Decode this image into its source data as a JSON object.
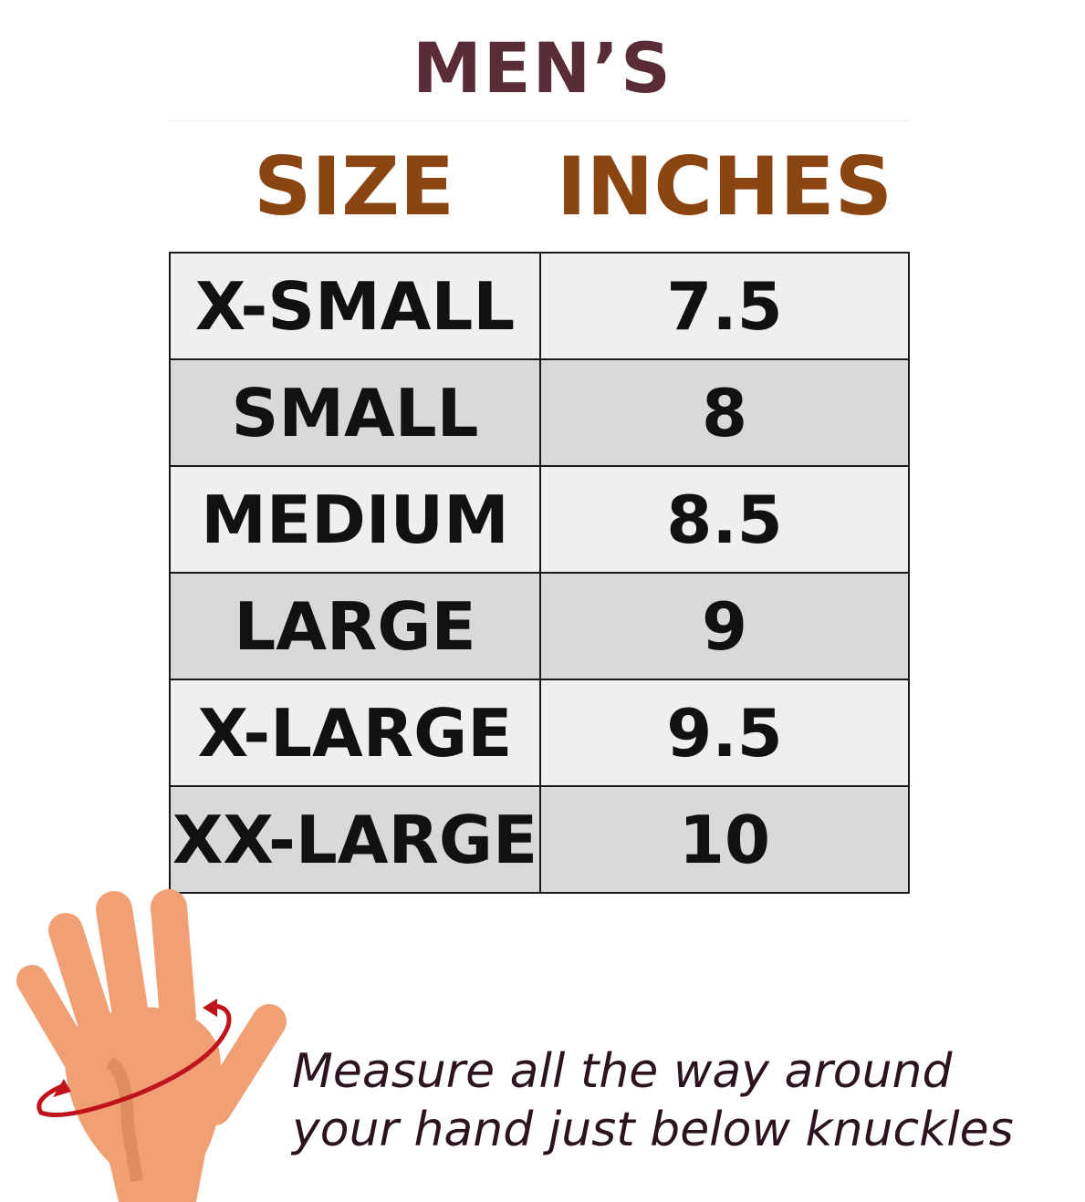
{
  "title": "MEN’S",
  "table": {
    "headers": [
      "SIZE",
      "INCHES"
    ],
    "rows": [
      {
        "size": "X-SMALL",
        "inches": "7.5"
      },
      {
        "size": "SMALL",
        "inches": "8"
      },
      {
        "size": "MEDIUM",
        "inches": "8.5"
      },
      {
        "size": "LARGE",
        "inches": "9"
      },
      {
        "size": "X-LARGE",
        "inches": "9.5"
      },
      {
        "size": "XX-LARGE",
        "inches": "10"
      }
    ]
  },
  "note": {
    "line1": "Measure all the way around",
    "line2": "your hand just below knuckles"
  },
  "colors": {
    "title": "#5a2c38",
    "header": "#8a4512",
    "row_light": "#efefef",
    "row_dark": "#d9d9d9",
    "skin": "#f0a074",
    "arrow": "#c0141c"
  },
  "illustration": "hand-measurement-icon"
}
